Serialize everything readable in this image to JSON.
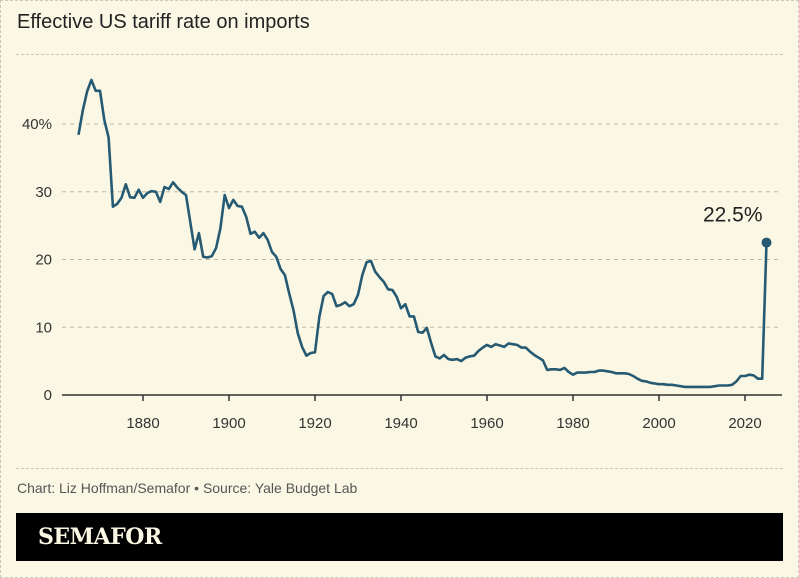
{
  "chart_data": {
    "type": "line",
    "title": "Effective US tariff rate on imports",
    "xlabel": "",
    "ylabel": "",
    "xlim": [
      1860,
      2029
    ],
    "ylim": [
      0,
      48
    ],
    "grid": true,
    "line_color": "#265a73",
    "x_ticks": [
      1880,
      1900,
      1920,
      1940,
      1960,
      1980,
      2000,
      2020
    ],
    "x_tick_labels": [
      "1880",
      "1900",
      "1920",
      "1940",
      "1960",
      "1980",
      "2000",
      "2020"
    ],
    "y_ticks": [
      0,
      10,
      20,
      30,
      40
    ],
    "y_tick_labels": [
      "0",
      "10",
      "20",
      "30",
      "40%"
    ],
    "annotation": {
      "x": 2025,
      "y": 22.5,
      "label": "22.5%"
    },
    "series": [
      {
        "x": [
          1865,
          1866,
          1867,
          1868,
          1869,
          1870,
          1871,
          1872,
          1873,
          1874,
          1875,
          1876,
          1877,
          1878,
          1879,
          1880,
          1881,
          1882,
          1883,
          1884,
          1885,
          1886,
          1887,
          1888,
          1889,
          1890,
          1891,
          1892,
          1893,
          1894,
          1895,
          1896,
          1897,
          1898,
          1899,
          1900,
          1901,
          1902,
          1903,
          1904,
          1905,
          1906,
          1907,
          1908,
          1909,
          1910,
          1911,
          1912,
          1913,
          1914,
          1915,
          1916,
          1917,
          1918,
          1919,
          1920,
          1921,
          1922,
          1923,
          1924,
          1925,
          1926,
          1927,
          1928,
          1929,
          1930,
          1931,
          1932,
          1933,
          1934,
          1935,
          1936,
          1937,
          1938,
          1939,
          1940,
          1941,
          1942,
          1943,
          1944,
          1945,
          1946,
          1947,
          1948,
          1949,
          1950,
          1951,
          1952,
          1953,
          1954,
          1955,
          1956,
          1957,
          1958,
          1959,
          1960,
          1961,
          1962,
          1963,
          1964,
          1965,
          1966,
          1967,
          1968,
          1969,
          1970,
          1971,
          1972,
          1973,
          1974,
          1975,
          1976,
          1977,
          1978,
          1979,
          1980,
          1981,
          1982,
          1983,
          1984,
          1985,
          1986,
          1987,
          1988,
          1989,
          1990,
          1991,
          1992,
          1993,
          1994,
          1995,
          1996,
          1997,
          1998,
          1999,
          2000,
          2001,
          2002,
          2003,
          2004,
          2005,
          2006,
          2007,
          2008,
          2009,
          2010,
          2011,
          2012,
          2013,
          2014,
          2015,
          2016,
          2017,
          2018,
          2019,
          2020,
          2021,
          2022,
          2023,
          2024,
          2025
        ],
        "values": [
          38.4,
          42,
          44.8,
          46.5,
          44.9,
          44.9,
          40.6,
          38,
          27.8,
          28.2,
          29.1,
          31.1,
          29.2,
          29.1,
          30.3,
          29.1,
          29.8,
          30.1,
          30,
          28.5,
          30.7,
          30.4,
          31.4,
          30.6,
          30,
          29.5,
          25.5,
          21.5,
          23.9,
          20.4,
          20.3,
          20.5,
          21.7,
          24.6,
          29.5,
          27.6,
          28.8,
          27.9,
          27.8,
          26.3,
          23.8,
          24.1,
          23.2,
          23.9,
          22.9,
          21.1,
          20.4,
          18.6,
          17.7,
          15,
          12.5,
          9.1,
          7.1,
          5.8,
          6.2,
          6.3,
          11.5,
          14.6,
          15.2,
          14.9,
          13.1,
          13.3,
          13.7,
          13.1,
          13.4,
          14.8,
          17.7,
          19.6,
          19.8,
          18.2,
          17.4,
          16.7,
          15.6,
          15.5,
          14.5,
          12.8,
          13.4,
          11.6,
          11.6,
          9.3,
          9.2,
          9.9,
          7.7,
          5.7,
          5.4,
          5.9,
          5.3,
          5.2,
          5.3,
          5.0,
          5.5,
          5.7,
          5.8,
          6.5,
          7.0,
          7.4,
          7.1,
          7.5,
          7.3,
          7.1,
          7.6,
          7.5,
          7.4,
          7.0,
          7.0,
          6.4,
          5.9,
          5.5,
          5.1,
          3.7,
          3.8,
          3.8,
          3.7,
          4.0,
          3.4,
          3.0,
          3.3,
          3.3,
          3.3,
          3.4,
          3.4,
          3.6,
          3.6,
          3.5,
          3.4,
          3.2,
          3.2,
          3.2,
          3.1,
          2.8,
          2.4,
          2.1,
          2.0,
          1.8,
          1.7,
          1.6,
          1.6,
          1.5,
          1.5,
          1.4,
          1.3,
          1.2,
          1.2,
          1.2,
          1.2,
          1.2,
          1.2,
          1.2,
          1.3,
          1.4,
          1.4,
          1.4,
          1.5,
          2.0,
          2.8,
          2.8,
          3.0,
          2.9,
          2.4,
          2.4,
          22.5
        ]
      }
    ]
  },
  "footer": {
    "credit": "Chart: Liz Hoffman/Semafor • Source: Yale Budget Lab",
    "brand": "SEMAFOR"
  }
}
